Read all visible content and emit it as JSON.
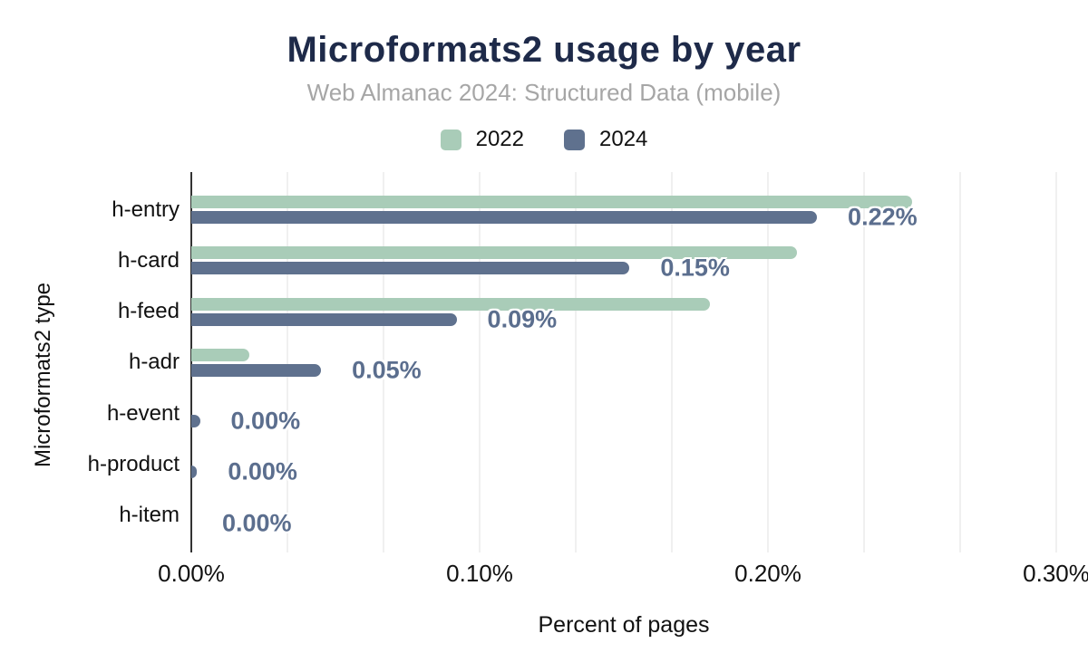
{
  "chart": {
    "title": "Microformats2 usage by year",
    "subtitle": "Web Almanac 2024: Structured Data (mobile)",
    "xlabel": "Percent of pages",
    "ylabel": "Microformats2 type"
  },
  "chart_data": {
    "type": "bar",
    "orientation": "horizontal",
    "title": "Microformats2 usage by year",
    "subtitle": "Web Almanac 2024: Structured Data (mobile)",
    "xlabel": "Percent of pages",
    "ylabel": "Microformats2 type",
    "categories": [
      "h-entry",
      "h-card",
      "h-feed",
      "h-adr",
      "h-event",
      "h-product",
      "h-item"
    ],
    "series": [
      {
        "name": "2022",
        "color": "#a9ccb8",
        "values": [
          0.25,
          0.21,
          0.18,
          0.02,
          0,
          0,
          0
        ]
      },
      {
        "name": "2024",
        "color": "#5f718e",
        "values": [
          0.217,
          0.152,
          0.092,
          0.045,
          0.003,
          0.002,
          0
        ],
        "data_labels": [
          "0.22%",
          "0.15%",
          "0.09%",
          "0.05%",
          "0.00%",
          "0.00%",
          "0.00%"
        ]
      }
    ],
    "xlim": [
      0,
      0.3
    ],
    "x_tick_labels": [
      "0.00%",
      "0.10%",
      "0.20%",
      "0.30%"
    ],
    "x_tick_values": [
      0,
      0.1,
      0.2,
      0.3
    ],
    "grid": "vertical gridlines, minor interval one-third of 0.10%",
    "legend_position": "top-center",
    "data_labels_series": "2024"
  },
  "colors": {
    "background": "#ffffff",
    "title": "#1e2a49",
    "subtitle": "#a6a6a6",
    "series_2022": "#a9ccb8",
    "series_2024": "#5f718e",
    "data_label": "#5b6e8e",
    "axis_line": "#333333",
    "gridline": "#f0f0f0",
    "text": "#111111"
  }
}
